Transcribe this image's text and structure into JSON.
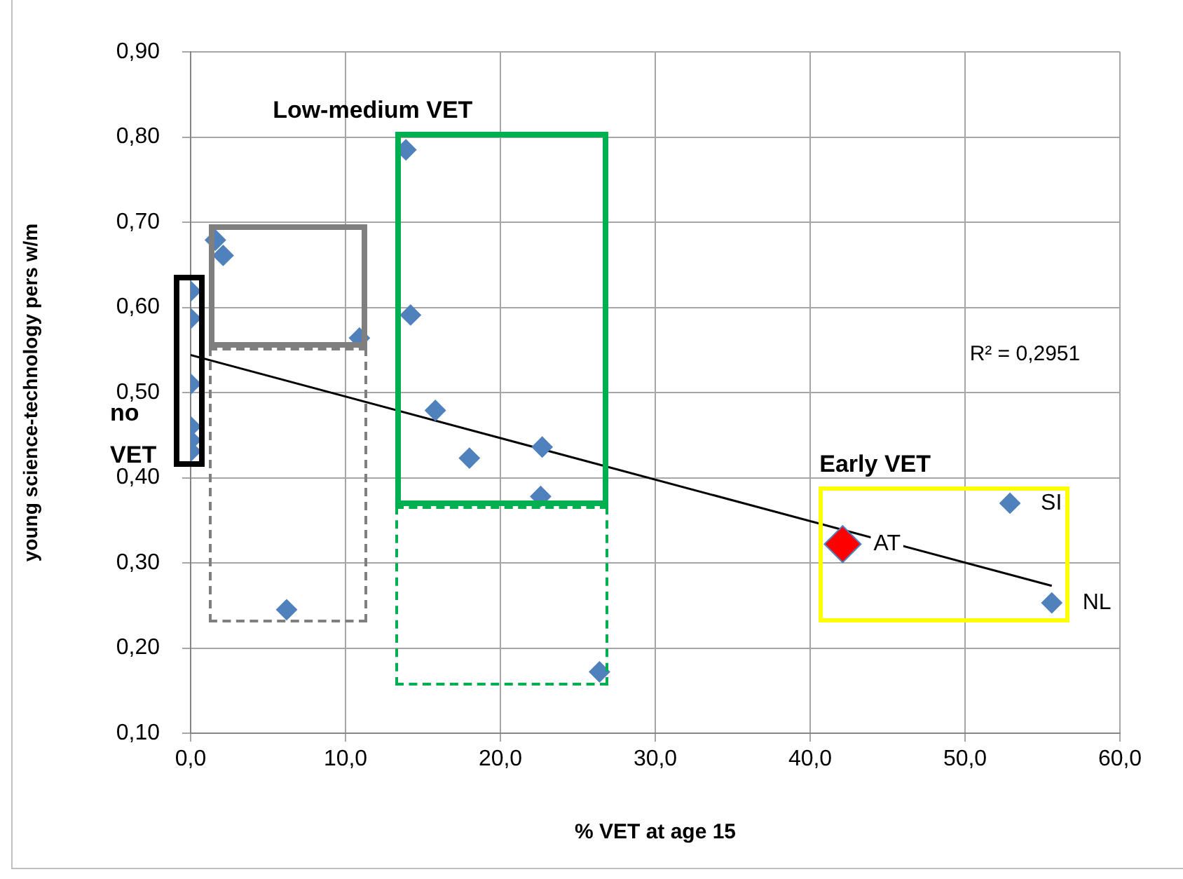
{
  "chart_data": {
    "type": "scatter",
    "xlabel": "% VET at age 15",
    "ylabel": "young science-technology pers w/m",
    "xlim": [
      0,
      60
    ],
    "ylim": [
      0.1,
      0.9
    ],
    "xticks": [
      {
        "value": 0,
        "label": "0,0"
      },
      {
        "value": 10,
        "label": "10,0"
      },
      {
        "value": 20,
        "label": "20,0"
      },
      {
        "value": 30,
        "label": "30,0"
      },
      {
        "value": 40,
        "label": "40,0"
      },
      {
        "value": 50,
        "label": "50,0"
      },
      {
        "value": 60,
        "label": "60,0"
      }
    ],
    "yticks": [
      {
        "value": 0.1,
        "label": "0,10"
      },
      {
        "value": 0.2,
        "label": "0,20"
      },
      {
        "value": 0.3,
        "label": "0,30"
      },
      {
        "value": 0.4,
        "label": "0,40"
      },
      {
        "value": 0.5,
        "label": "0,50"
      },
      {
        "value": 0.6,
        "label": "0,60"
      },
      {
        "value": 0.7,
        "label": "0,70"
      },
      {
        "value": 0.8,
        "label": "0,80"
      },
      {
        "value": 0.9,
        "label": "0,90"
      }
    ],
    "grid": true,
    "legend": false,
    "marker": "diamond",
    "series": [
      {
        "color": "#4f81bd",
        "x": [
          0,
          0,
          0,
          0,
          0,
          0,
          1.6,
          2.1,
          10.9,
          6.2,
          13.9,
          14.2,
          15.8,
          18.0,
          22.7,
          22.6,
          26.4,
          52.9,
          55.6
        ],
        "values": [
          0.619,
          0.587,
          0.51,
          0.46,
          0.444,
          0.431,
          0.679,
          0.661,
          0.564,
          0.245,
          0.785,
          0.591,
          0.479,
          0.423,
          0.436,
          0.378,
          0.172,
          0.37,
          0.253
        ]
      },
      {
        "color": "#ff0000",
        "x": [
          42.1
        ],
        "values": [
          0.322
        ]
      },
      {
        "type": "line",
        "color": "#000000",
        "marker": "none",
        "x": [
          0,
          55.6
        ],
        "values": [
          0.544,
          0.273
        ]
      }
    ],
    "annotations": [
      "Low-medium VET",
      "no VET",
      "Early VET",
      "R² = 0,2951",
      {
        "text": "SI",
        "x": 52.9,
        "y": 0.37
      },
      {
        "text": "AT",
        "x": 42.1,
        "y": 0.322
      },
      {
        "text": "NL",
        "x": 55.6,
        "y": 0.253
      }
    ]
  }
}
